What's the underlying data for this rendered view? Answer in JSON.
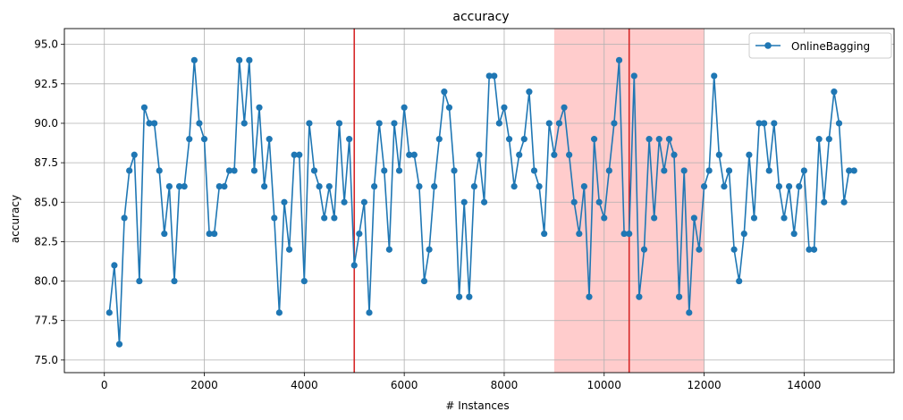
{
  "chart_data": {
    "type": "line",
    "title": "accuracy",
    "xlabel": "# Instances",
    "ylabel": "accuracy",
    "xlim": [
      -800,
      15800
    ],
    "ylim": [
      74.2,
      96.0
    ],
    "x_ticks": [
      0,
      2000,
      4000,
      6000,
      8000,
      10000,
      12000,
      14000
    ],
    "y_ticks": [
      75.0,
      77.5,
      80.0,
      82.5,
      85.0,
      87.5,
      90.0,
      92.5,
      95.0
    ],
    "grid": true,
    "legend": "top-right",
    "series": [
      {
        "name": "OnlineBagging",
        "color": "#1f77b4",
        "x": [
          100,
          200,
          300,
          400,
          500,
          600,
          700,
          800,
          900,
          1000,
          1100,
          1200,
          1300,
          1400,
          1500,
          1600,
          1700,
          1800,
          1900,
          2000,
          2100,
          2200,
          2300,
          2400,
          2500,
          2600,
          2700,
          2800,
          2900,
          3000,
          3100,
          3200,
          3300,
          3400,
          3500,
          3600,
          3700,
          3800,
          3900,
          4000,
          4100,
          4200,
          4300,
          4400,
          4500,
          4600,
          4700,
          4800,
          4900,
          5000,
          5100,
          5200,
          5300,
          5400,
          5500,
          5600,
          5700,
          5800,
          5900,
          6000,
          6100,
          6200,
          6300,
          6400,
          6500,
          6600,
          6700,
          6800,
          6900,
          7000,
          7100,
          7200,
          7300,
          7400,
          7500,
          7600,
          7700,
          7800,
          7900,
          8000,
          8100,
          8200,
          8300,
          8400,
          8500,
          8600,
          8700,
          8800,
          8900,
          9000,
          9100,
          9200,
          9300,
          9400,
          9500,
          9600,
          9700,
          9800,
          9900,
          10000,
          10100,
          10200,
          10300,
          10400,
          10500,
          10600,
          10700,
          10800,
          10900,
          11000,
          11100,
          11200,
          11300,
          11400,
          11500,
          11600,
          11700,
          11800,
          11900,
          12000,
          12100,
          12200,
          12300,
          12400,
          12500,
          12600,
          12700,
          12800,
          12900,
          13000,
          13100,
          13200,
          13300,
          13400,
          13500,
          13600,
          13700,
          13800,
          13900,
          14000,
          14100,
          14200,
          14300,
          14400,
          14500,
          14600,
          14700,
          14800,
          14900,
          15000
        ],
        "y": [
          78,
          81,
          76,
          84,
          87,
          88,
          80,
          91,
          90,
          90,
          87,
          83,
          86,
          80,
          86,
          86,
          89,
          94,
          90,
          89,
          83,
          83,
          86,
          86,
          87,
          87,
          94,
          90,
          94,
          87,
          91,
          86,
          89,
          84,
          78,
          85,
          82,
          88,
          88,
          80,
          90,
          87,
          86,
          84,
          86,
          84,
          90,
          85,
          89,
          81,
          83,
          85,
          78,
          86,
          90,
          87,
          82,
          90,
          87,
          91,
          88,
          88,
          86,
          80,
          82,
          86,
          89,
          92,
          91,
          87,
          79,
          85,
          79,
          86,
          88,
          85,
          93,
          93,
          90,
          91,
          89,
          86,
          88,
          89,
          92,
          87,
          86,
          83,
          90,
          88,
          90,
          91,
          88,
          85,
          83,
          86,
          79,
          89,
          85,
          84,
          87,
          90,
          94,
          83,
          83,
          93,
          79,
          82,
          89,
          84,
          89,
          87,
          89,
          88,
          79,
          87,
          78,
          84,
          82,
          86,
          87,
          93,
          88,
          86,
          87,
          82,
          80,
          83,
          88,
          84,
          90,
          90,
          87,
          90,
          86,
          84,
          86,
          83,
          86,
          87,
          82,
          82,
          89,
          85,
          89,
          92,
          90,
          85,
          87,
          87
        ]
      }
    ],
    "vertical_lines": [
      {
        "x": 5000,
        "color": "#d62728"
      },
      {
        "x": 10500,
        "color": "#d62728"
      }
    ],
    "shaded_regions": [
      {
        "x_start": 9000,
        "x_end": 12000,
        "color": "#ff0000",
        "opacity": 0.2
      }
    ]
  }
}
